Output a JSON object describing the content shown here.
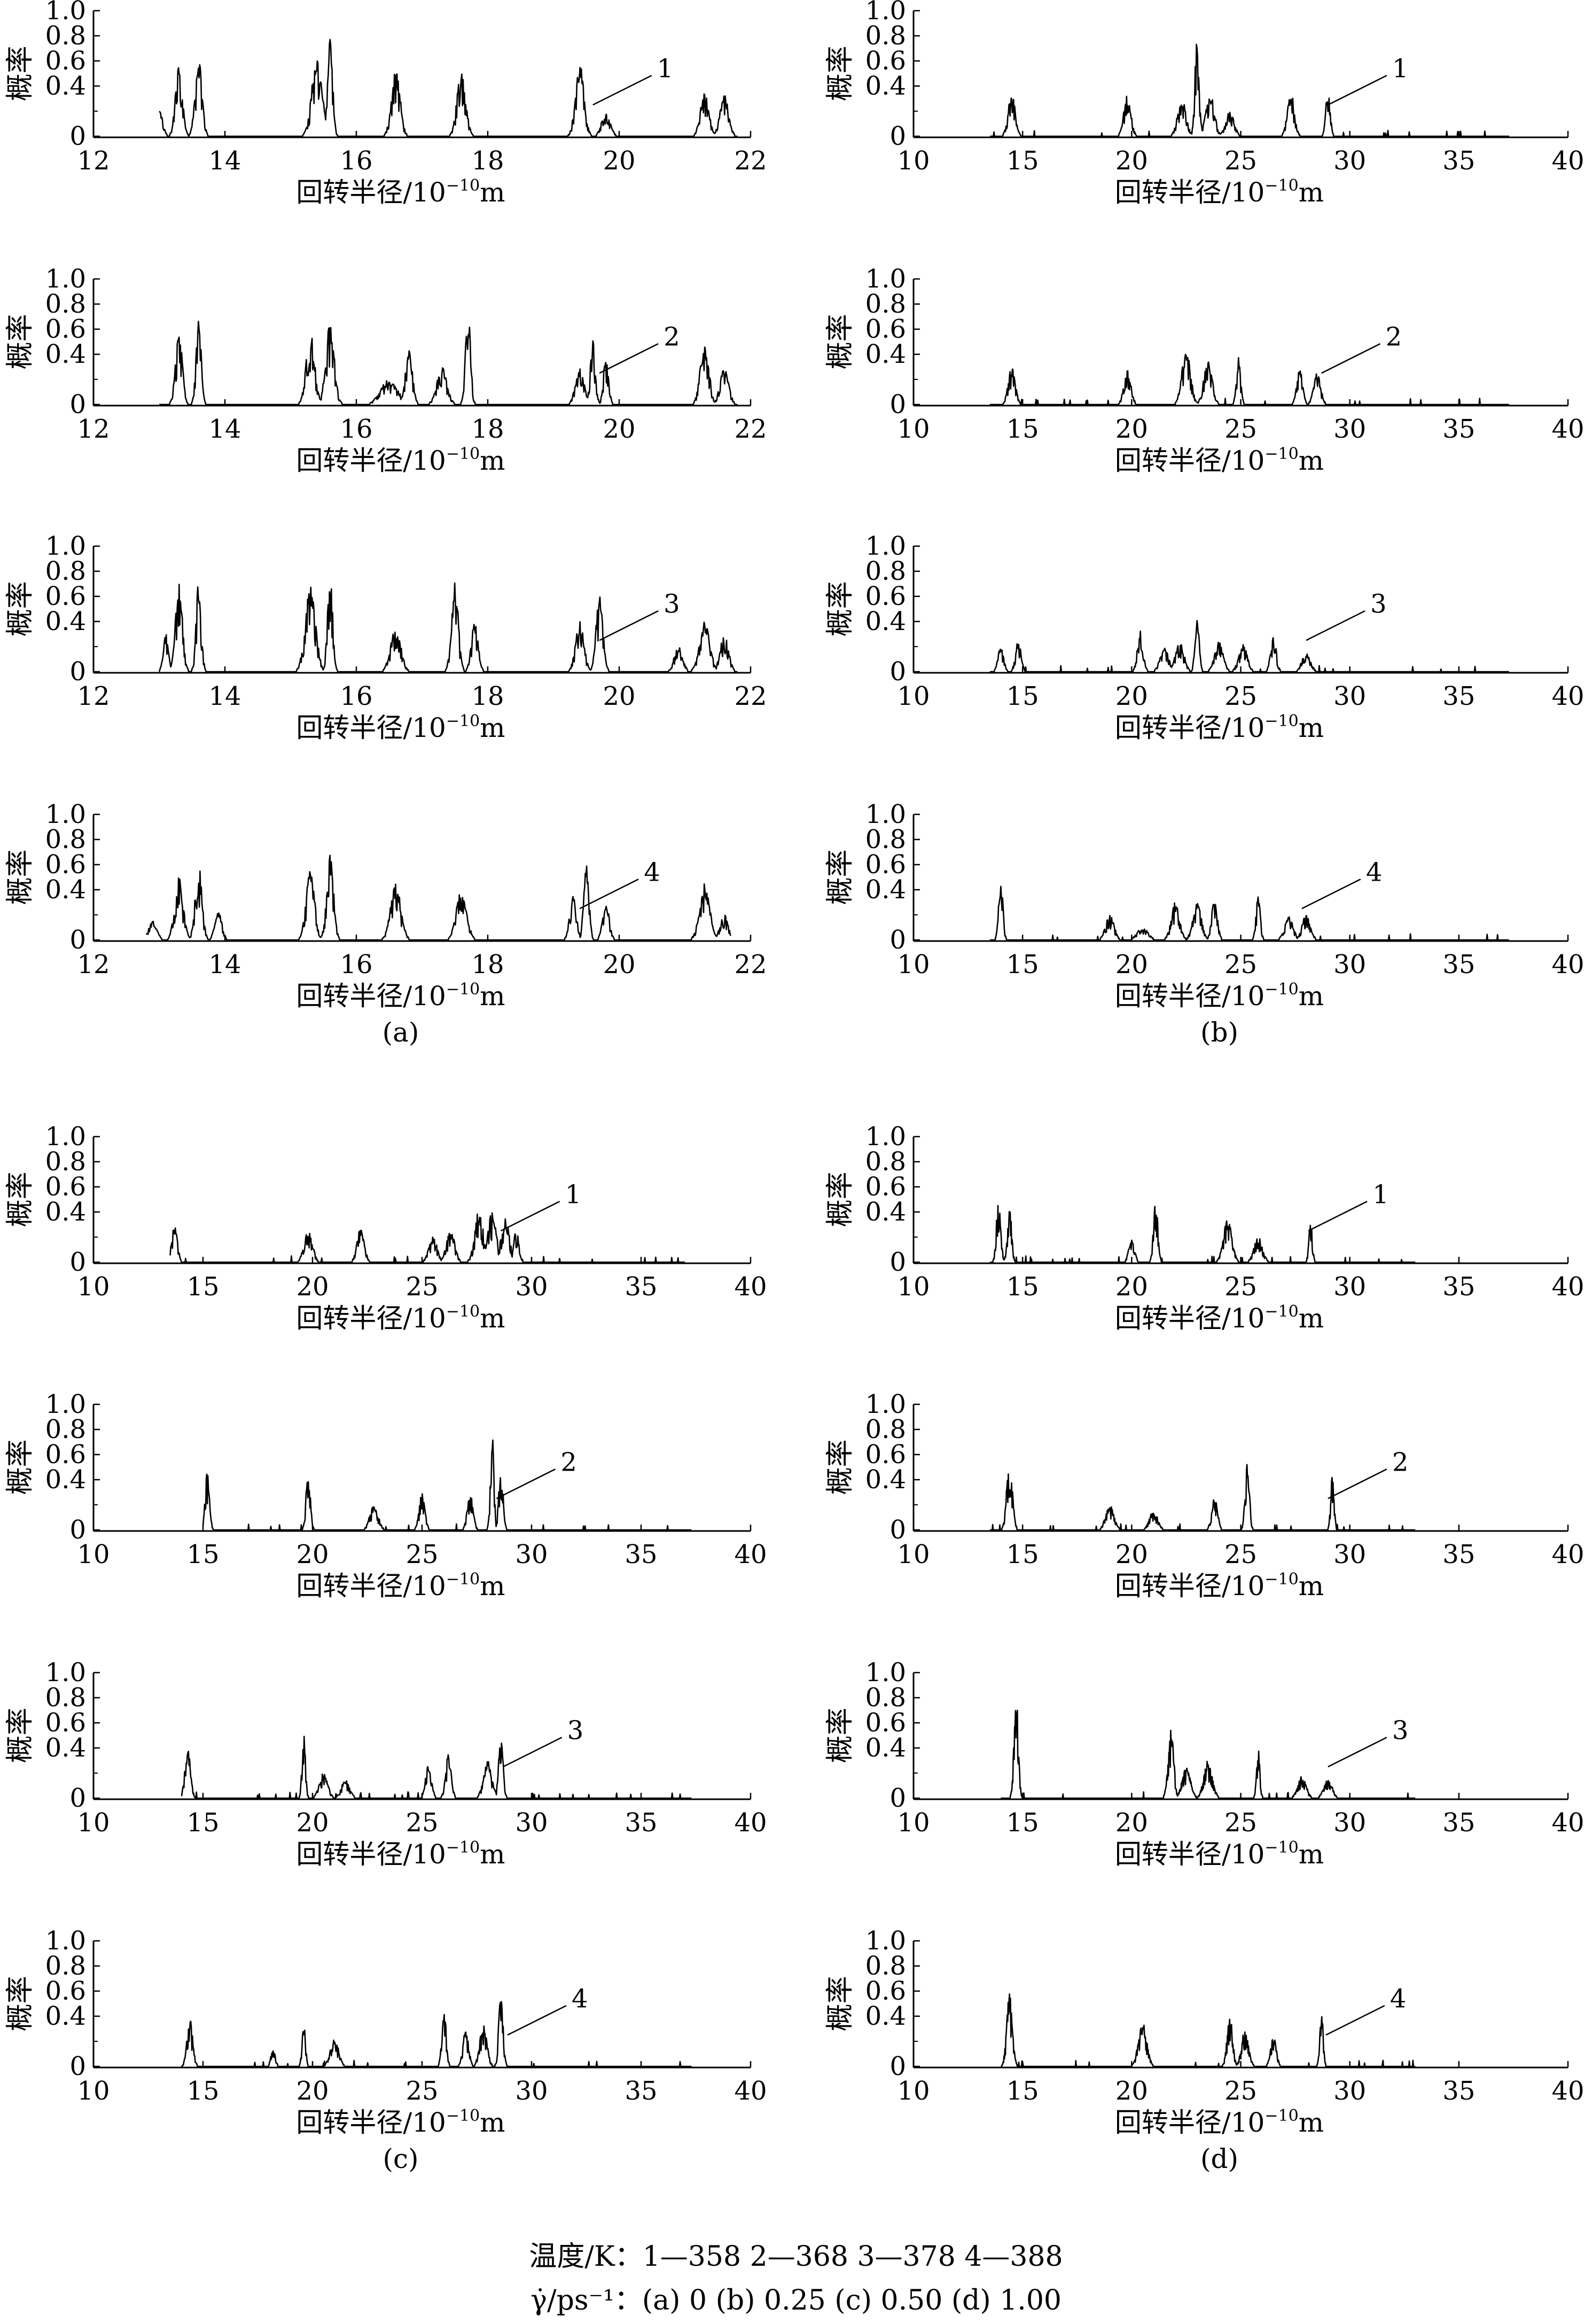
{
  "chart_data": {
    "type": "line",
    "ylabel": "概率",
    "xlabel_main": "回转半径/10",
    "xlabel_exp": "−10",
    "xlabel_unit": "m",
    "yticks": [
      "0",
      "0.4",
      "0.6",
      "0.8",
      "1.0"
    ],
    "legend": {
      "temperature_line": "温度/K：1—358    2—368    3—378    4—388",
      "rate_label": "γ̇/ps⁻¹：(a) 0    (b) 0.25    (c) 0.50    (d) 1.00"
    },
    "panels": [
      {
        "label": "(a)",
        "xlim": [
          12,
          22
        ],
        "xticks": [
          12,
          14,
          16,
          18,
          20,
          22
        ],
        "series": [
          {
            "name": "1",
            "peaks": [
              [
                13.0,
                0.22,
                0.08
              ],
              [
                13.3,
                0.6,
                0.08
              ],
              [
                13.6,
                0.65,
                0.08
              ],
              [
                15.4,
                0.65,
                0.12
              ],
              [
                15.6,
                0.82,
                0.06
              ],
              [
                16.6,
                0.55,
                0.1
              ],
              [
                17.6,
                0.55,
                0.1
              ],
              [
                19.4,
                0.58,
                0.1
              ],
              [
                19.8,
                0.2,
                0.1
              ],
              [
                21.3,
                0.35,
                0.1
              ],
              [
                21.6,
                0.33,
                0.1
              ]
            ],
            "range": [
              13.0,
              21.8
            ],
            "label_x": 19.6
          },
          {
            "name": "2",
            "peaks": [
              [
                13.3,
                0.58,
                0.08
              ],
              [
                13.6,
                0.75,
                0.06
              ],
              [
                15.3,
                0.6,
                0.1
              ],
              [
                15.6,
                0.65,
                0.1
              ],
              [
                16.5,
                0.2,
                0.2
              ],
              [
                16.8,
                0.45,
                0.08
              ],
              [
                17.3,
                0.3,
                0.12
              ],
              [
                17.7,
                0.75,
                0.06
              ],
              [
                19.4,
                0.3,
                0.1
              ],
              [
                19.6,
                0.52,
                0.06
              ],
              [
                19.8,
                0.4,
                0.06
              ],
              [
                21.3,
                0.5,
                0.1
              ],
              [
                21.6,
                0.3,
                0.1
              ]
            ],
            "range": [
              13.0,
              21.8
            ],
            "label_x": 19.7
          },
          {
            "name": "3",
            "peaks": [
              [
                13.1,
                0.3,
                0.06
              ],
              [
                13.3,
                0.75,
                0.08
              ],
              [
                13.6,
                0.72,
                0.06
              ],
              [
                15.3,
                0.7,
                0.12
              ],
              [
                15.6,
                0.82,
                0.06
              ],
              [
                16.6,
                0.35,
                0.12
              ],
              [
                17.5,
                0.72,
                0.08
              ],
              [
                17.8,
                0.4,
                0.08
              ],
              [
                19.4,
                0.4,
                0.1
              ],
              [
                19.7,
                0.62,
                0.08
              ],
              [
                20.9,
                0.2,
                0.1
              ],
              [
                21.3,
                0.42,
                0.12
              ],
              [
                21.6,
                0.3,
                0.1
              ]
            ],
            "range": [
              13.0,
              21.8
            ],
            "label_x": 19.7
          },
          {
            "name": "4",
            "peaks": [
              [
                12.9,
                0.15,
                0.1
              ],
              [
                13.3,
                0.5,
                0.1
              ],
              [
                13.6,
                0.6,
                0.08
              ],
              [
                13.9,
                0.25,
                0.08
              ],
              [
                15.3,
                0.55,
                0.1
              ],
              [
                15.6,
                0.7,
                0.08
              ],
              [
                16.6,
                0.45,
                0.12
              ],
              [
                17.6,
                0.42,
                0.12
              ],
              [
                19.3,
                0.35,
                0.08
              ],
              [
                19.5,
                0.65,
                0.06
              ],
              [
                19.8,
                0.3,
                0.08
              ],
              [
                21.3,
                0.45,
                0.12
              ],
              [
                21.6,
                0.2,
                0.1
              ]
            ],
            "range": [
              12.8,
              21.7
            ],
            "label_x": 19.4
          }
        ]
      },
      {
        "label": "(b)",
        "xlim": [
          10,
          40
        ],
        "xticks": [
          10,
          15,
          20,
          25,
          30,
          35,
          40
        ],
        "series": [
          {
            "name": "1",
            "peaks": [
              [
                14.5,
                0.35,
                0.25
              ],
              [
                19.8,
                0.33,
                0.25
              ],
              [
                22.3,
                0.3,
                0.3
              ],
              [
                23.0,
                0.82,
                0.15
              ],
              [
                23.6,
                0.35,
                0.3
              ],
              [
                24.5,
                0.2,
                0.3
              ],
              [
                27.3,
                0.35,
                0.25
              ],
              [
                29.0,
                0.4,
                0.15
              ]
            ],
            "range": [
              13.5,
              37.3
            ],
            "label_x": 29.0
          },
          {
            "name": "2",
            "peaks": [
              [
                14.5,
                0.3,
                0.25
              ],
              [
                19.8,
                0.28,
                0.25
              ],
              [
                22.5,
                0.45,
                0.3
              ],
              [
                23.5,
                0.35,
                0.3
              ],
              [
                24.9,
                0.38,
                0.15
              ],
              [
                27.7,
                0.32,
                0.2
              ],
              [
                28.5,
                0.25,
                0.25
              ]
            ],
            "range": [
              13.5,
              37.3
            ],
            "label_x": 28.7
          },
          {
            "name": "3",
            "peaks": [
              [
                14.0,
                0.2,
                0.2
              ],
              [
                14.8,
                0.25,
                0.2
              ],
              [
                20.4,
                0.35,
                0.2
              ],
              [
                21.5,
                0.2,
                0.3
              ],
              [
                22.2,
                0.25,
                0.3
              ],
              [
                23.0,
                0.42,
                0.15
              ],
              [
                24.0,
                0.25,
                0.3
              ],
              [
                25.1,
                0.22,
                0.3
              ],
              [
                26.5,
                0.28,
                0.2
              ],
              [
                28.0,
                0.15,
                0.3
              ]
            ],
            "range": [
              13.5,
              37.3
            ],
            "label_x": 28.0
          },
          {
            "name": "4",
            "peaks": [
              [
                14.0,
                0.48,
                0.15
              ],
              [
                19.0,
                0.2,
                0.3
              ],
              [
                20.5,
                0.1,
                0.4
              ],
              [
                22.0,
                0.3,
                0.3
              ],
              [
                23.0,
                0.3,
                0.3
              ],
              [
                23.8,
                0.35,
                0.2
              ],
              [
                25.8,
                0.35,
                0.15
              ],
              [
                27.2,
                0.2,
                0.3
              ],
              [
                28.0,
                0.2,
                0.3
              ]
            ],
            "range": [
              13.5,
              37.3
            ],
            "label_x": 27.8
          }
        ]
      },
      {
        "label": "(c)",
        "xlim": [
          10,
          40
        ],
        "xticks": [
          10,
          15,
          20,
          25,
          30,
          35,
          40
        ],
        "series": [
          {
            "name": "1",
            "peaks": [
              [
                13.7,
                0.3,
                0.2
              ],
              [
                19.8,
                0.25,
                0.3
              ],
              [
                22.2,
                0.28,
                0.25
              ],
              [
                25.5,
                0.2,
                0.3
              ],
              [
                26.3,
                0.25,
                0.3
              ],
              [
                27.6,
                0.42,
                0.3
              ],
              [
                28.2,
                0.4,
                0.3
              ],
              [
                28.8,
                0.35,
                0.3
              ],
              [
                29.3,
                0.25,
                0.2
              ]
            ],
            "range": [
              13.5,
              37.0
            ],
            "label_x": 28.6
          },
          {
            "name": "2",
            "peaks": [
              [
                15.2,
                0.48,
                0.15
              ],
              [
                19.8,
                0.48,
                0.15
              ],
              [
                22.8,
                0.2,
                0.3
              ],
              [
                25.0,
                0.3,
                0.2
              ],
              [
                27.2,
                0.3,
                0.2
              ],
              [
                28.2,
                0.86,
                0.12
              ],
              [
                28.6,
                0.5,
                0.15
              ]
            ],
            "range": [
              15.0,
              37.3
            ],
            "label_x": 28.4
          },
          {
            "name": "3",
            "peaks": [
              [
                14.3,
                0.4,
                0.2
              ],
              [
                19.6,
                0.55,
                0.12
              ],
              [
                20.5,
                0.2,
                0.3
              ],
              [
                21.5,
                0.15,
                0.3
              ],
              [
                25.3,
                0.3,
                0.2
              ],
              [
                26.2,
                0.35,
                0.2
              ],
              [
                28.0,
                0.3,
                0.3
              ],
              [
                28.6,
                0.58,
                0.15
              ]
            ],
            "range": [
              14.0,
              37.3
            ],
            "label_x": 28.7
          },
          {
            "name": "4",
            "peaks": [
              [
                14.4,
                0.38,
                0.2
              ],
              [
                18.2,
                0.15,
                0.15
              ],
              [
                19.6,
                0.35,
                0.12
              ],
              [
                21.0,
                0.22,
                0.3
              ],
              [
                26.0,
                0.5,
                0.15
              ],
              [
                27.0,
                0.3,
                0.2
              ],
              [
                27.8,
                0.35,
                0.25
              ],
              [
                28.6,
                0.65,
                0.15
              ]
            ],
            "range": [
              14.0,
              37.3
            ],
            "label_x": 28.9
          }
        ]
      },
      {
        "label": "(d)",
        "xlim": [
          10,
          40
        ],
        "xticks": [
          10,
          15,
          20,
          25,
          30,
          35,
          40
        ],
        "series": [
          {
            "name": "1",
            "peaks": [
              [
                13.9,
                0.55,
                0.15
              ],
              [
                14.4,
                0.45,
                0.15
              ],
              [
                20.0,
                0.2,
                0.2
              ],
              [
                21.1,
                0.5,
                0.15
              ],
              [
                24.4,
                0.35,
                0.3
              ],
              [
                25.8,
                0.2,
                0.3
              ],
              [
                28.2,
                0.35,
                0.12
              ]
            ],
            "range": [
              13.5,
              33.0
            ],
            "label_x": 28.1
          },
          {
            "name": "2",
            "peaks": [
              [
                14.4,
                0.6,
                0.2
              ],
              [
                19.0,
                0.2,
                0.3
              ],
              [
                21.0,
                0.15,
                0.3
              ],
              [
                23.8,
                0.28,
                0.2
              ],
              [
                25.3,
                0.55,
                0.15
              ],
              [
                29.2,
                0.45,
                0.12
              ]
            ],
            "range": [
              13.5,
              33.0
            ],
            "label_x": 29.0
          },
          {
            "name": "3",
            "peaks": [
              [
                14.7,
                0.88,
                0.15
              ],
              [
                21.8,
                0.55,
                0.2
              ],
              [
                22.5,
                0.25,
                0.3
              ],
              [
                23.5,
                0.3,
                0.3
              ],
              [
                25.8,
                0.4,
                0.12
              ],
              [
                27.8,
                0.18,
                0.3
              ],
              [
                29.0,
                0.15,
                0.3
              ]
            ],
            "range": [
              14.0,
              33.0
            ],
            "label_x": 29.0
          },
          {
            "name": "4",
            "peaks": [
              [
                14.4,
                0.58,
                0.2
              ],
              [
                20.5,
                0.35,
                0.3
              ],
              [
                24.5,
                0.4,
                0.2
              ],
              [
                25.2,
                0.3,
                0.25
              ],
              [
                26.5,
                0.25,
                0.2
              ],
              [
                28.7,
                0.45,
                0.12
              ]
            ],
            "range": [
              14.0,
              33.0
            ],
            "label_x": 28.9
          }
        ]
      }
    ]
  }
}
